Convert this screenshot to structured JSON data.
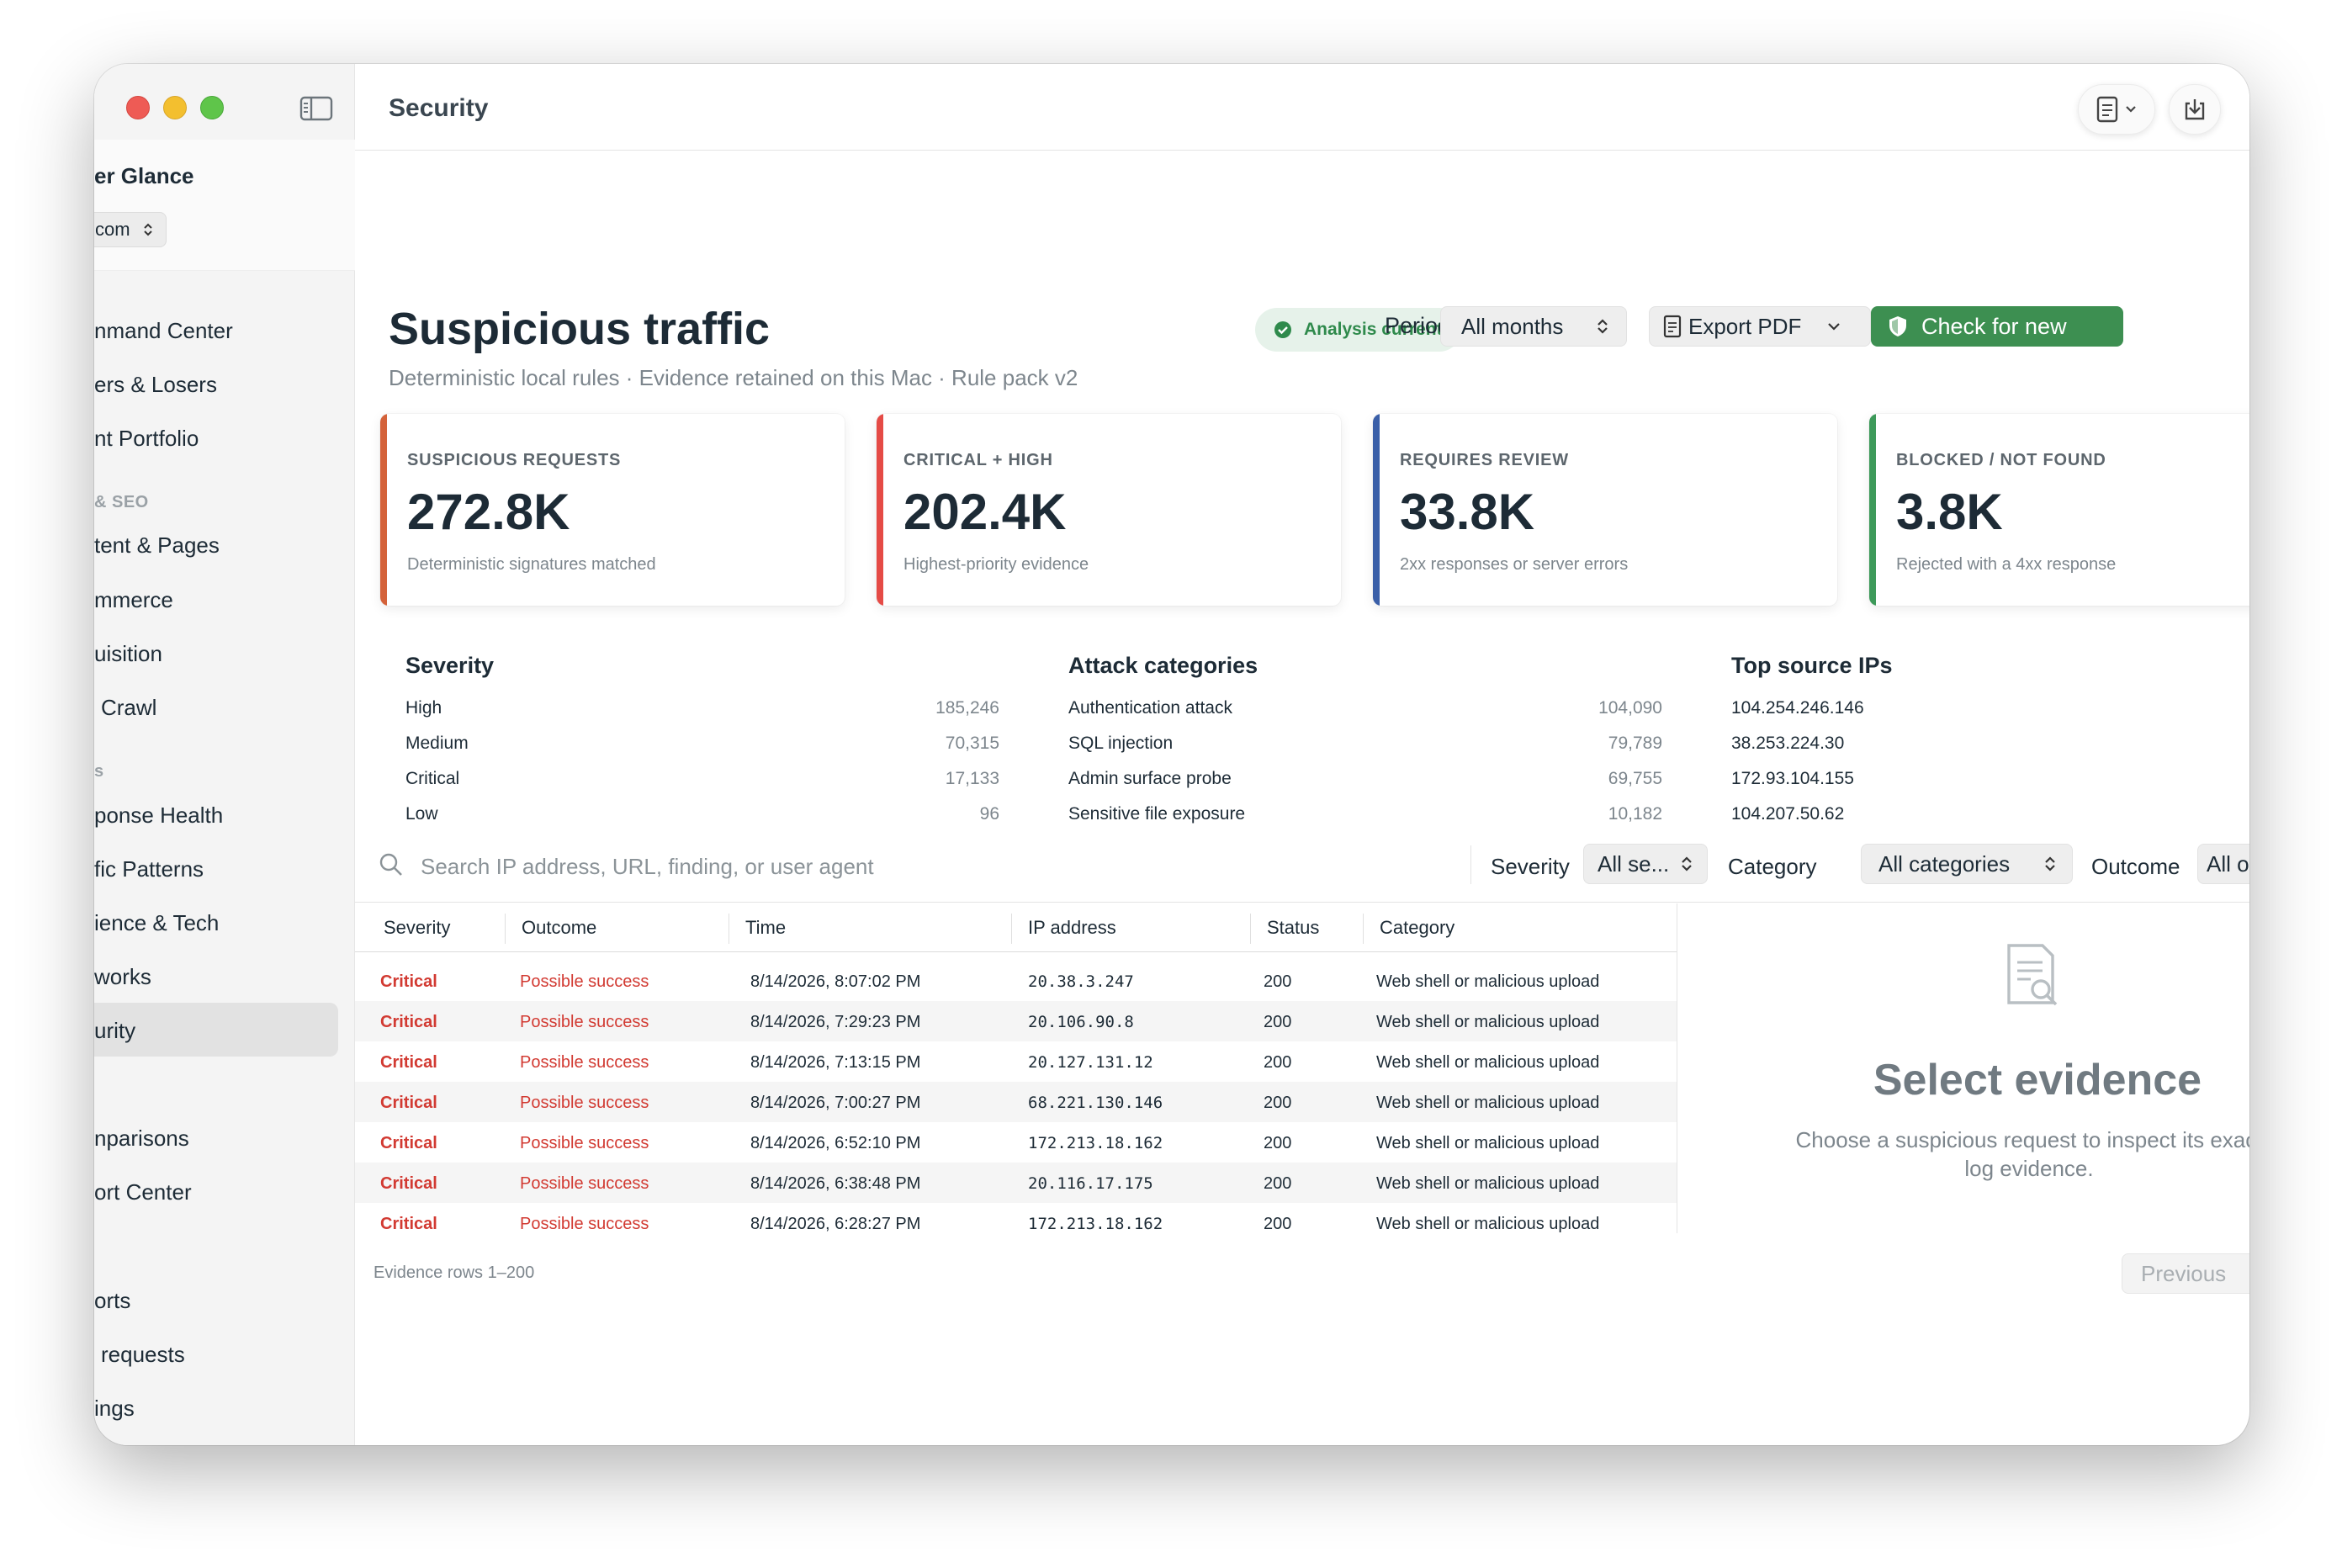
{
  "sidebar": {
    "app_title": "er Glance",
    "site_select": "com",
    "items": [
      {
        "label": "nmand Center",
        "y": 0
      },
      {
        "label": "ers & Losers",
        "y": 0
      },
      {
        "label": "nt Portfolio",
        "y": 0
      }
    ],
    "section_content": "& SEO",
    "content_items": [
      "tent & Pages",
      "mmerce",
      "uisition",
      "Crawl"
    ],
    "section_tech": "s",
    "tech_items": [
      "ponse Health",
      "fic Patterns",
      "ience & Tech",
      "works",
      "urity"
    ],
    "extra_items": [
      "nparisons",
      "ort Center"
    ],
    "bottom_items": [
      "orts",
      "requests",
      "ings"
    ]
  },
  "toolbar": {
    "title": "Security"
  },
  "header": {
    "title": "Suspicious traffic",
    "subtitle": "Deterministic local rules · Evidence retained on this Mac · Rule pack v2",
    "status": "Analysis current",
    "period_label": "Period",
    "period_value": "All months",
    "export_label": "Export PDF",
    "check_label": "Check for new"
  },
  "cards": [
    {
      "label": "SUSPICIOUS REQUESTS",
      "value": "272.8K",
      "note": "Deterministic signatures matched",
      "color": "#d4623a"
    },
    {
      "label": "CRITICAL + HIGH",
      "value": "202.4K",
      "note": "Highest-priority evidence",
      "color": "#e54b46"
    },
    {
      "label": "REQUIRES REVIEW",
      "value": "33.8K",
      "note": "2xx responses or server errors",
      "color": "#3a5fa8"
    },
    {
      "label": "BLOCKED / NOT FOUND",
      "value": "3.8K",
      "note": "Rejected with a 4xx response",
      "color": "#3d9a5a"
    }
  ],
  "severity": {
    "title": "Severity",
    "rows": [
      {
        "k": "High",
        "v": "185,246"
      },
      {
        "k": "Medium",
        "v": "70,315"
      },
      {
        "k": "Critical",
        "v": "17,133"
      },
      {
        "k": "Low",
        "v": "96"
      }
    ]
  },
  "categories": {
    "title": "Attack categories",
    "rows": [
      {
        "k": "Authentication attack",
        "v": "104,090"
      },
      {
        "k": "SQL injection",
        "v": "79,789"
      },
      {
        "k": "Admin surface probe",
        "v": "69,755"
      },
      {
        "k": "Sensitive file exposure",
        "v": "10,182"
      }
    ]
  },
  "top_ips": {
    "title": "Top source IPs",
    "rows": [
      {
        "k": "104.254.246.146",
        "v": ""
      },
      {
        "k": "38.253.224.30",
        "v": ""
      },
      {
        "k": "172.93.104.155",
        "v": ""
      },
      {
        "k": "104.207.50.62",
        "v": ""
      }
    ]
  },
  "filters": {
    "search_placeholder": "Search IP address, URL, finding, or user agent",
    "severity_label": "Severity",
    "severity_value": "All se...",
    "category_label": "Category",
    "category_value": "All categories",
    "outcome_label": "Outcome",
    "outcome_value": "All ou"
  },
  "table": {
    "columns": [
      "Severity",
      "Outcome",
      "Time",
      "IP address",
      "Status",
      "Category"
    ],
    "rows": [
      [
        "Critical",
        "Possible success",
        "8/14/2026, 8:07:02 PM",
        "20.38.3.247",
        "200",
        "Web shell or malicious upload"
      ],
      [
        "Critical",
        "Possible success",
        "8/14/2026, 7:29:23 PM",
        "20.106.90.8",
        "200",
        "Web shell or malicious upload"
      ],
      [
        "Critical",
        "Possible success",
        "8/14/2026, 7:13:15 PM",
        "20.127.131.12",
        "200",
        "Web shell or malicious upload"
      ],
      [
        "Critical",
        "Possible success",
        "8/14/2026, 7:00:27 PM",
        "68.221.130.146",
        "200",
        "Web shell or malicious upload"
      ],
      [
        "Critical",
        "Possible success",
        "8/14/2026, 6:52:10 PM",
        "172.213.18.162",
        "200",
        "Web shell or malicious upload"
      ],
      [
        "Critical",
        "Possible success",
        "8/14/2026, 6:38:48 PM",
        "20.116.17.175",
        "200",
        "Web shell or malicious upload"
      ],
      [
        "Critical",
        "Possible success",
        "8/14/2026, 6:28:27 PM",
        "172.213.18.162",
        "200",
        "Web shell or malicious upload"
      ]
    ],
    "footer": "Evidence rows 1–200",
    "previous_label": "Previous"
  },
  "detail": {
    "title": "Select evidence",
    "text": "Choose a suspicious request to inspect its exact log evidence."
  }
}
